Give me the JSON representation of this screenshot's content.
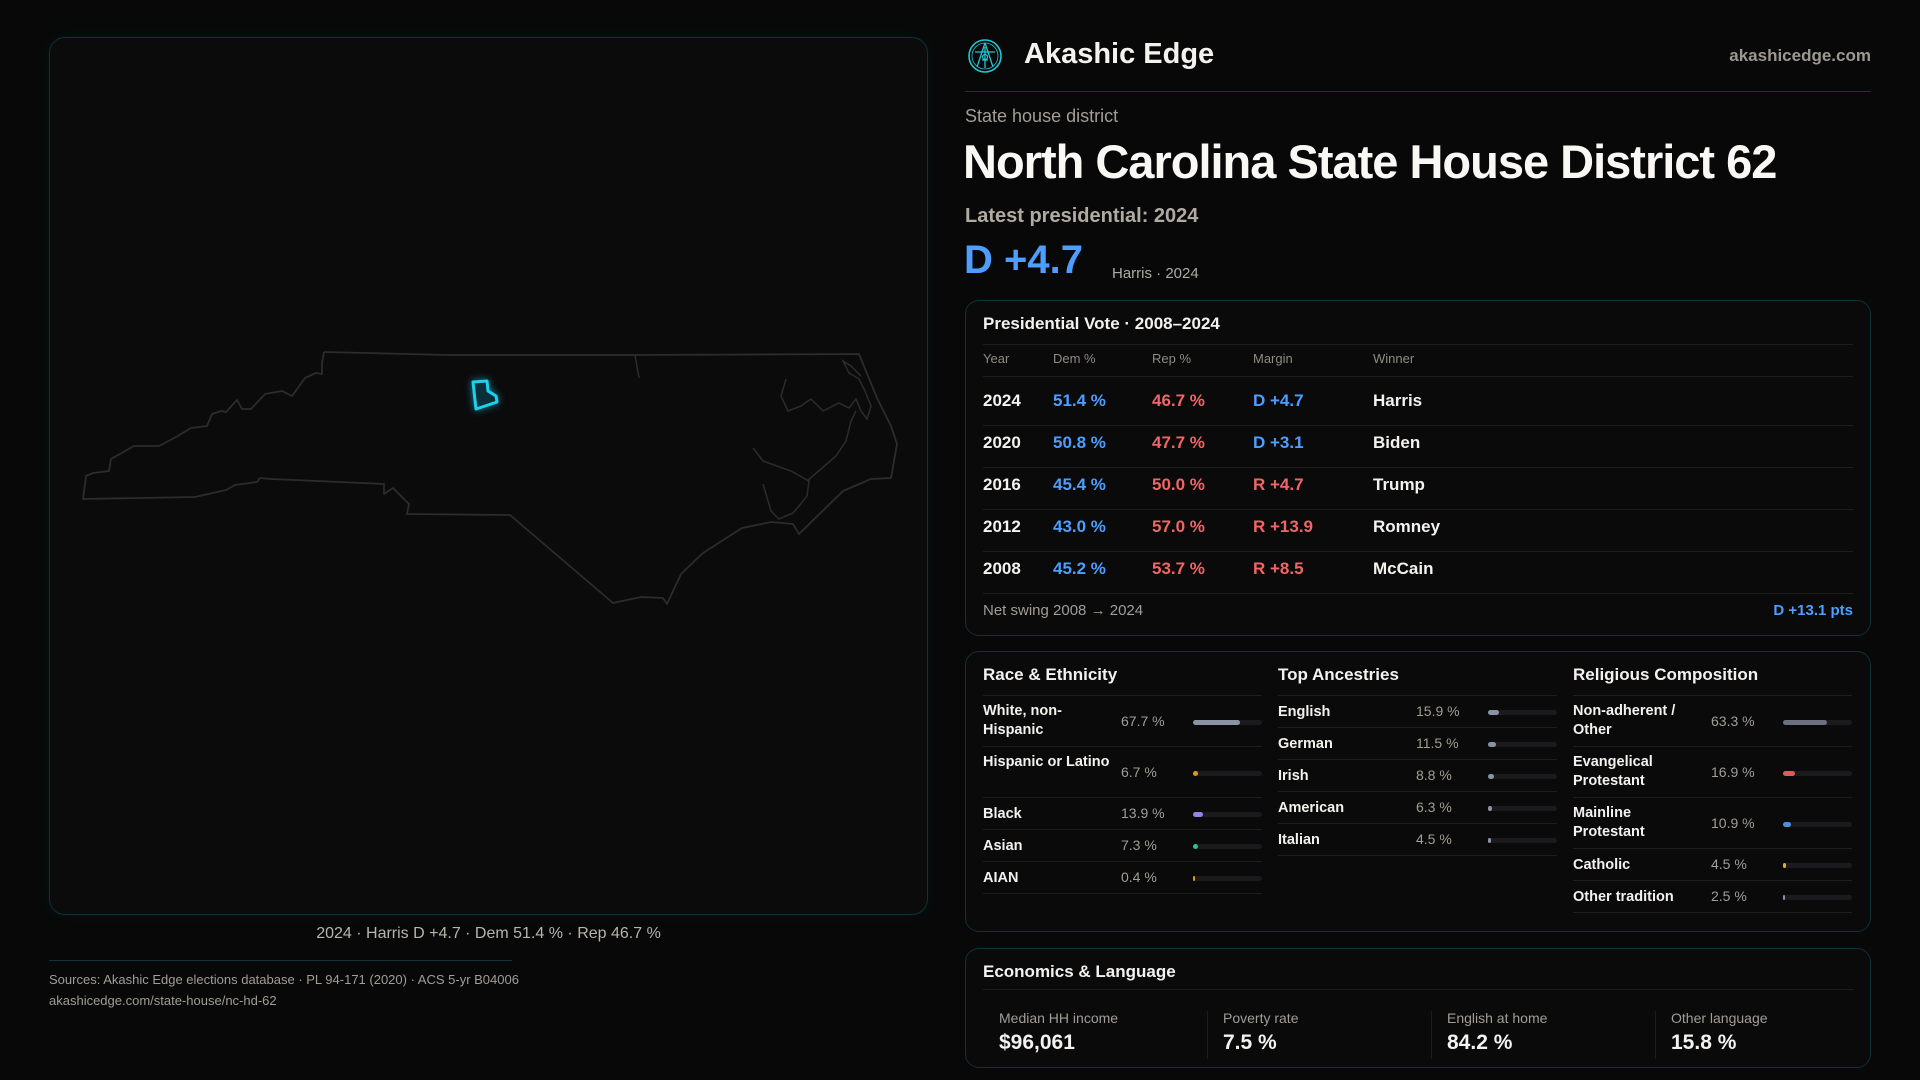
{
  "brand": {
    "name": "Akashic Edge",
    "url": "akashicedge.com",
    "logo_icon": "compass-key-emblem-icon",
    "accent": "#22c6d6"
  },
  "header": {
    "kicker": "State house district",
    "title": "North Carolina State House District 62",
    "latest": "Latest presidential: 2024",
    "margin": "D +4.7",
    "margin_sub": "Harris · 2024"
  },
  "map": {
    "caption": "2024 · Harris D +4.7 · Dem 51.4 % · Rep 46.7 %",
    "district_color": "#19d3f0",
    "state": "North Carolina"
  },
  "colors": {
    "dem": "#4d9eff",
    "rep": "#f06565"
  },
  "presidential": {
    "title": "Presidential Vote · 2008–2024",
    "columns": [
      "Year",
      "Dem %",
      "Rep %",
      "Margin",
      "Winner"
    ],
    "rows": [
      {
        "year": "2024",
        "dem": "51.4 %",
        "rep": "46.7 %",
        "margin": "D +4.7",
        "party": "D",
        "winner": "Harris"
      },
      {
        "year": "2020",
        "dem": "50.8 %",
        "rep": "47.7 %",
        "margin": "D +3.1",
        "party": "D",
        "winner": "Biden"
      },
      {
        "year": "2016",
        "dem": "45.4 %",
        "rep": "50.0 %",
        "margin": "R +4.7",
        "party": "R",
        "winner": "Trump"
      },
      {
        "year": "2012",
        "dem": "43.0 %",
        "rep": "57.0 %",
        "margin": "R +13.9",
        "party": "R",
        "winner": "Romney"
      },
      {
        "year": "2008",
        "dem": "45.2 %",
        "rep": "53.7 %",
        "margin": "R +8.5",
        "party": "R",
        "winner": "McCain"
      }
    ],
    "swing_label": "Net swing 2008 → 2024",
    "swing_value": "D +13.1 pts"
  },
  "demographics": [
    {
      "title": "Race & Ethnicity",
      "items": [
        {
          "label": "White, non-Hispanic",
          "value": "67.7 %",
          "pct": 67.7,
          "color": "#8a93a6"
        },
        {
          "label": "Hispanic or Latino",
          "value": "6.7 %",
          "pct": 6.7,
          "color": "#e0981a"
        },
        {
          "label": "Black",
          "value": "13.9 %",
          "pct": 13.9,
          "color": "#9b7fe6"
        },
        {
          "label": "Asian",
          "value": "7.3 %",
          "pct": 7.3,
          "color": "#2fc08f"
        },
        {
          "label": "AIAN",
          "value": "0.4 %",
          "pct": 0.4,
          "color": "#e0981a"
        }
      ]
    },
    {
      "title": "Top Ancestries",
      "items": [
        {
          "label": "English",
          "value": "15.9 %",
          "pct": 15.9,
          "color": "#8a93a6"
        },
        {
          "label": "German",
          "value": "11.5 %",
          "pct": 11.5,
          "color": "#8a93a6"
        },
        {
          "label": "Irish",
          "value": "8.8 %",
          "pct": 8.8,
          "color": "#8a93a6"
        },
        {
          "label": "American",
          "value": "6.3 %",
          "pct": 6.3,
          "color": "#8a93a6"
        },
        {
          "label": "Italian",
          "value": "4.5 %",
          "pct": 4.5,
          "color": "#8a93a6"
        }
      ]
    },
    {
      "title": "Religious Composition",
      "items": [
        {
          "label": "Non-adherent / Other",
          "value": "63.3 %",
          "pct": 63.3,
          "color": "#6b7180"
        },
        {
          "label": "Evangelical Protestant",
          "value": "16.9 %",
          "pct": 16.9,
          "color": "#e05a5a"
        },
        {
          "label": "Mainline Protestant",
          "value": "10.9 %",
          "pct": 10.9,
          "color": "#4a8fe0"
        },
        {
          "label": "Catholic",
          "value": "4.5 %",
          "pct": 4.5,
          "color": "#e0b020"
        },
        {
          "label": "Other tradition",
          "value": "2.5 %",
          "pct": 2.5,
          "color": "#8a93a6"
        }
      ]
    }
  ],
  "economics": {
    "title": "Economics & Language",
    "stats": [
      {
        "label": "Median HH income",
        "value": "$96,061"
      },
      {
        "label": "Poverty rate",
        "value": "7.5 %"
      },
      {
        "label": "English at home",
        "value": "84.2 %"
      },
      {
        "label": "Other language",
        "value": "15.8 %"
      }
    ]
  },
  "footer": {
    "sources": "Sources: Akashic Edge elections database · PL 94-171 (2020) · ACS 5-yr B04006",
    "url": "akashicedge.com/state-house/nc-hd-62"
  }
}
